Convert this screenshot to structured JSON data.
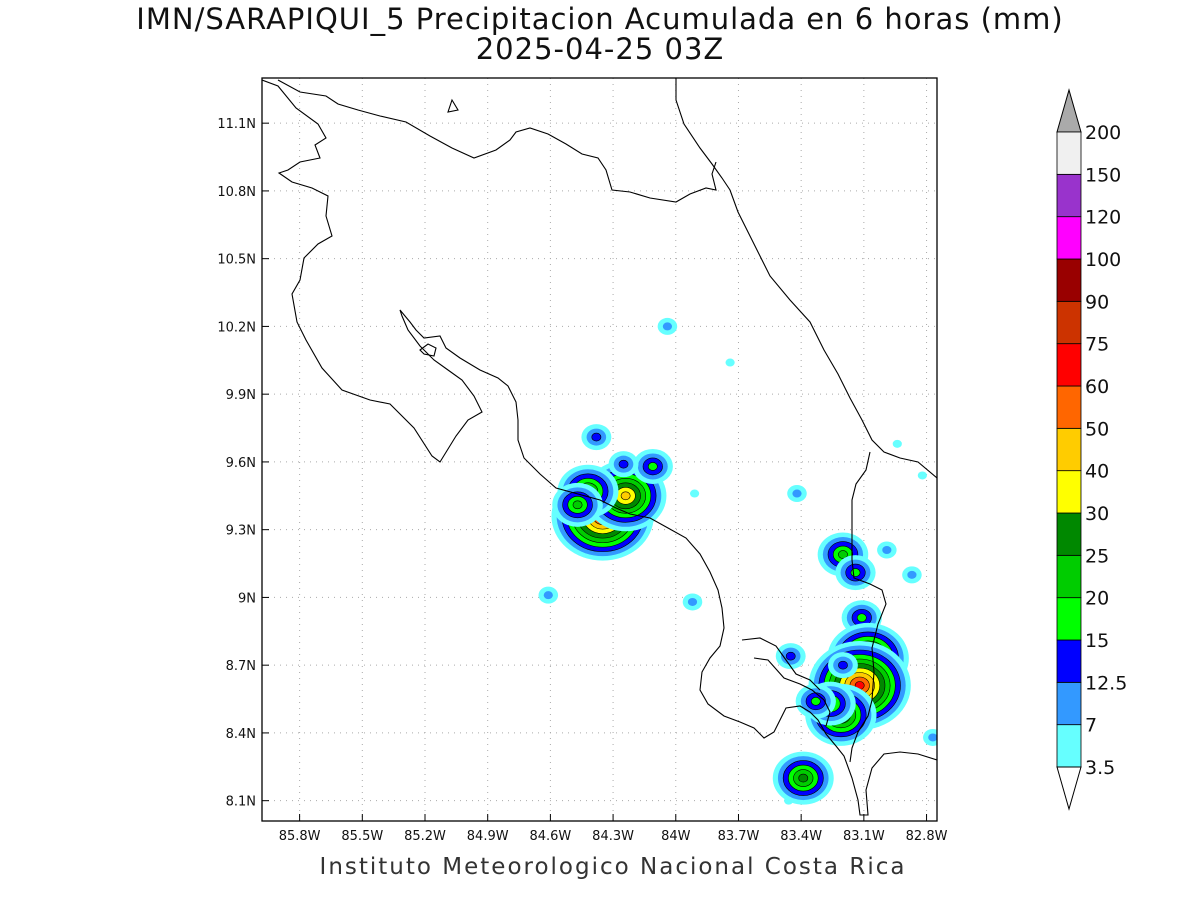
{
  "title": {
    "line1": "IMN/SARAPIQUI_5 Precipitacion Acumulada en 6 horas (mm)",
    "line2": "2025-04-25 03Z"
  },
  "footer": "Instituto Meteorologico Nacional Costa Rica",
  "map": {
    "lon_range": [
      -85.98,
      -82.75
    ],
    "lat_range": [
      8.01,
      11.3
    ],
    "lat_ticks": [
      {
        "value": 11.1,
        "label": "11.1N"
      },
      {
        "value": 10.8,
        "label": "10.8N"
      },
      {
        "value": 10.5,
        "label": "10.5N"
      },
      {
        "value": 10.2,
        "label": "10.2N"
      },
      {
        "value": 9.9,
        "label": "9.9N"
      },
      {
        "value": 9.6,
        "label": "9.6N"
      },
      {
        "value": 9.3,
        "label": "9.3N"
      },
      {
        "value": 9.0,
        "label": "9N"
      },
      {
        "value": 8.7,
        "label": "8.7N"
      },
      {
        "value": 8.4,
        "label": "8.4N"
      },
      {
        "value": 8.1,
        "label": "8.1N"
      }
    ],
    "lon_ticks": [
      {
        "value": -85.8,
        "label": "85.8W"
      },
      {
        "value": -85.5,
        "label": "85.5W"
      },
      {
        "value": -85.2,
        "label": "85.2W"
      },
      {
        "value": -84.9,
        "label": "84.9W"
      },
      {
        "value": -84.6,
        "label": "84.6W"
      },
      {
        "value": -84.3,
        "label": "84.3W"
      },
      {
        "value": -84.0,
        "label": "84W"
      },
      {
        "value": -83.7,
        "label": "83.7W"
      },
      {
        "value": -83.4,
        "label": "83.4W"
      },
      {
        "value": -83.1,
        "label": "83.1W"
      },
      {
        "value": -82.8,
        "label": "82.8W"
      }
    ],
    "grid": true
  },
  "colorbar": {
    "levels": [
      "3.5",
      "7",
      "12.5",
      "15",
      "20",
      "25",
      "30",
      "40",
      "50",
      "60",
      "75",
      "90",
      "100",
      "120",
      "150",
      "200"
    ],
    "colors": [
      "#66ffff",
      "#3399ff",
      "#0000ff",
      "#00ff00",
      "#00cc00",
      "#008800",
      "#ffff00",
      "#ffcc00",
      "#ff6600",
      "#ff0000",
      "#cc3300",
      "#990000",
      "#ff00ff",
      "#9933cc",
      "#f0f0f0"
    ],
    "over_color": "#aaaaaa",
    "under_color": "#ffffff"
  },
  "precip_cells": [
    {
      "lon": -84.35,
      "lat": 9.36,
      "mm": 60
    },
    {
      "lon": -84.24,
      "lat": 9.45,
      "mm": 40
    },
    {
      "lon": -84.42,
      "lat": 9.47,
      "mm": 25
    },
    {
      "lon": -84.47,
      "lat": 9.41,
      "mm": 20
    },
    {
      "lon": -84.11,
      "lat": 9.58,
      "mm": 15
    },
    {
      "lon": -84.25,
      "lat": 9.59,
      "mm": 12.5
    },
    {
      "lon": -84.38,
      "lat": 9.71,
      "mm": 12.5
    },
    {
      "lon": -84.04,
      "lat": 10.2,
      "mm": 7
    },
    {
      "lon": -83.91,
      "lat": 9.46,
      "mm": 3.5
    },
    {
      "lon": -83.42,
      "lat": 9.46,
      "mm": 7
    },
    {
      "lon": -83.2,
      "lat": 9.19,
      "mm": 20
    },
    {
      "lon": -83.14,
      "lat": 9.11,
      "mm": 15
    },
    {
      "lon": -82.99,
      "lat": 9.21,
      "mm": 7
    },
    {
      "lon": -83.92,
      "lat": 8.98,
      "mm": 7
    },
    {
      "lon": -84.61,
      "lat": 9.01,
      "mm": 7
    },
    {
      "lon": -83.11,
      "lat": 8.91,
      "mm": 15
    },
    {
      "lon": -83.08,
      "lat": 8.73,
      "mm": 40
    },
    {
      "lon": -83.12,
      "lat": 8.61,
      "mm": 60
    },
    {
      "lon": -83.21,
      "lat": 8.48,
      "mm": 30
    },
    {
      "lon": -83.26,
      "lat": 8.53,
      "mm": 20
    },
    {
      "lon": -83.33,
      "lat": 8.54,
      "mm": 15
    },
    {
      "lon": -83.2,
      "lat": 8.7,
      "mm": 12.5
    },
    {
      "lon": -83.45,
      "lat": 8.74,
      "mm": 12.5
    },
    {
      "lon": -83.39,
      "lat": 8.2,
      "mm": 25
    },
    {
      "lon": -82.87,
      "lat": 9.1,
      "mm": 7
    },
    {
      "lon": -82.94,
      "lat": 9.68,
      "mm": 3.5
    },
    {
      "lon": -82.82,
      "lat": 9.54,
      "mm": 3.5
    },
    {
      "lon": -82.77,
      "lat": 8.38,
      "mm": 7
    },
    {
      "lon": -83.46,
      "lat": 8.1,
      "mm": 3.5
    },
    {
      "lon": -83.74,
      "lat": 10.04,
      "mm": 3.5
    }
  ]
}
